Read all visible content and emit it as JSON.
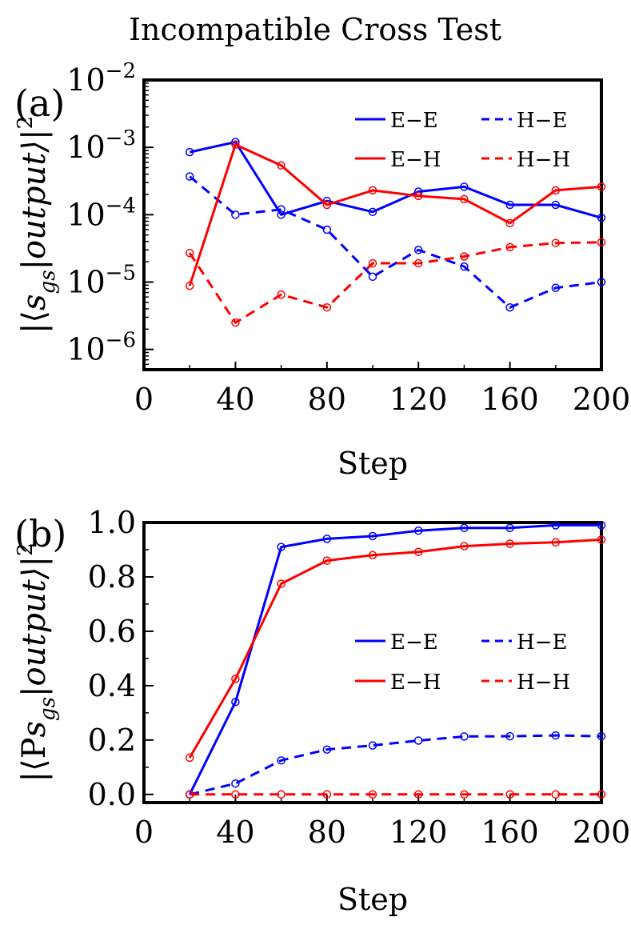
{
  "title": "Incompatible Cross Test",
  "chart_data": [
    {
      "panel_label": "(a)",
      "type": "line",
      "y_scale": "log",
      "ylabel": "|⟨s_gs|output⟩|²",
      "ylabel_parts": [
        "|⟨",
        "s",
        "gs",
        "|output⟩|",
        "2"
      ],
      "xlabel": "Step",
      "xlim": [
        0,
        200
      ],
      "ylim": [
        5e-07,
        0.01
      ],
      "x_ticks": [
        0,
        40,
        80,
        120,
        160,
        200
      ],
      "y_ticks": [
        {
          "value": 1e-06,
          "base": "10",
          "exp": "−6"
        },
        {
          "value": 1e-05,
          "base": "10",
          "exp": "−5"
        },
        {
          "value": 0.0001,
          "base": "10",
          "exp": "−4"
        },
        {
          "value": 0.001,
          "base": "10",
          "exp": "−3"
        },
        {
          "value": 0.01,
          "base": "10",
          "exp": "−2"
        }
      ],
      "legend_position": "top-right",
      "x": [
        20,
        40,
        60,
        80,
        100,
        120,
        140,
        160,
        180,
        200
      ],
      "series": [
        {
          "name": "E−E",
          "color": "#0000ff",
          "dash": "solid",
          "values": [
            0.00085,
            0.0012,
            0.0001,
            0.00016,
            0.00011,
            0.00022,
            0.00026,
            0.00014,
            0.00014,
            9e-05
          ]
        },
        {
          "name": "H−E",
          "color": "#0000ff",
          "dash": "dashed",
          "values": [
            0.00037,
            0.0001,
            0.00012,
            6e-05,
            1.2e-05,
            3e-05,
            1.7e-05,
            4.2e-06,
            8.2e-06,
            1e-05
          ]
        },
        {
          "name": "E−H",
          "color": "#ff0000",
          "dash": "solid",
          "values": [
            8.8e-06,
            0.0011,
            0.00054,
            0.00014,
            0.00023,
            0.00019,
            0.00017,
            7.5e-05,
            0.00023,
            0.00026
          ]
        },
        {
          "name": "H−H",
          "color": "#ff0000",
          "dash": "dashed",
          "values": [
            2.7e-05,
            2.5e-06,
            6.5e-06,
            4.2e-06,
            1.9e-05,
            1.9e-05,
            2.4e-05,
            3.3e-05,
            3.8e-05,
            3.9e-05
          ]
        }
      ]
    },
    {
      "panel_label": "(b)",
      "type": "line",
      "y_scale": "linear",
      "ylabel": "|⟨P s_gs|output⟩|²",
      "ylabel_parts": [
        "|⟨P",
        "s",
        "gs",
        "|output⟩|",
        "2"
      ],
      "xlabel": "Step",
      "xlim": [
        0,
        200
      ],
      "ylim": [
        -0.03,
        1.0
      ],
      "x_ticks": [
        0,
        40,
        80,
        120,
        160,
        200
      ],
      "y_ticks": [
        {
          "value": 0.0,
          "label": "0.0"
        },
        {
          "value": 0.2,
          "label": "0.2"
        },
        {
          "value": 0.4,
          "label": "0.4"
        },
        {
          "value": 0.6,
          "label": "0.6"
        },
        {
          "value": 0.8,
          "label": "0.8"
        },
        {
          "value": 1.0,
          "label": "1.0"
        }
      ],
      "legend_position": "center-right",
      "x": [
        20,
        40,
        60,
        80,
        100,
        120,
        140,
        160,
        180,
        200
      ],
      "series": [
        {
          "name": "E−E",
          "color": "#0000ff",
          "dash": "solid",
          "values": [
            0.0,
            0.34,
            0.91,
            0.94,
            0.95,
            0.97,
            0.98,
            0.98,
            0.99,
            0.99
          ]
        },
        {
          "name": "H−E",
          "color": "#0000ff",
          "dash": "dashed",
          "values": [
            0.0,
            0.04,
            0.125,
            0.165,
            0.18,
            0.198,
            0.213,
            0.214,
            0.217,
            0.214
          ]
        },
        {
          "name": "E−H",
          "color": "#ff0000",
          "dash": "solid",
          "values": [
            0.135,
            0.425,
            0.775,
            0.86,
            0.88,
            0.892,
            0.913,
            0.922,
            0.927,
            0.937
          ]
        },
        {
          "name": "H−H",
          "color": "#ff0000",
          "dash": "dashed",
          "values": [
            0.0,
            0.0,
            0.0,
            0.0,
            0.0,
            0.0,
            0.0,
            0.0,
            0.0,
            0.0
          ]
        }
      ]
    }
  ]
}
